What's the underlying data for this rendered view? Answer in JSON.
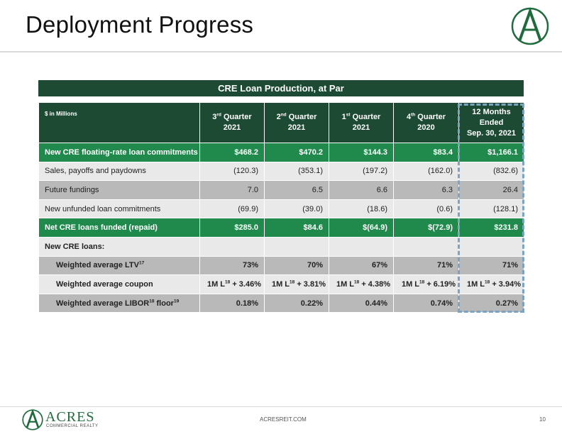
{
  "title": "Deployment Progress",
  "table": {
    "caption": "CRE Loan Production, at Par",
    "units": "$ in Millions",
    "columns": [
      {
        "main": "3",
        "sup": "rd",
        "rest": " Quarter",
        "line2": "2021"
      },
      {
        "main": "2",
        "sup": "nd",
        "rest": " Quarter",
        "line2": "2021"
      },
      {
        "main": "1",
        "sup": "st",
        "rest": " Quarter",
        "line2": "2021"
      },
      {
        "main": "4",
        "sup": "th",
        "rest": " Quarter",
        "line2": "2020"
      }
    ],
    "ttm_header": {
      "line1": "12 Months",
      "line2": "Ended",
      "line3": "Sep. 30, 2021"
    },
    "rows": [
      {
        "label": "New CRE floating-rate loan commitments",
        "values": [
          "$468.2",
          "$470.2",
          "$144.3",
          "$83.4",
          "$1,166.1"
        ]
      },
      {
        "label": "Sales, payoffs and paydowns",
        "values": [
          "(120.3)",
          "(353.1)",
          "(197.2)",
          "(162.0)",
          "(832.6)"
        ]
      },
      {
        "label": "Future fundings",
        "values": [
          "7.0",
          "6.5",
          "6.6",
          "6.3",
          "26.4"
        ]
      },
      {
        "label": "New unfunded loan commitments",
        "values": [
          "(69.9)",
          "(39.0)",
          "(18.6)",
          "(0.6)",
          "(128.1)"
        ]
      },
      {
        "label": "Net CRE loans funded (repaid)",
        "values": [
          "$285.0",
          "$84.6",
          "$(64.9)",
          "$(72.9)",
          "$231.8"
        ]
      },
      {
        "label": "New CRE loans:"
      },
      {
        "label": "Weighted average LTV",
        "label_sup": "17",
        "values": [
          "73%",
          "70%",
          "67%",
          "71%",
          "71%"
        ]
      },
      {
        "label": "Weighted average coupon",
        "coupon_prefix": "1M L",
        "coupon_sup": "18",
        "coupon_spreads": [
          " + 3.46%",
          " + 3.81%",
          " + 4.38%",
          " + 6.19%",
          " + 3.94%"
        ]
      },
      {
        "label": "Weighted average LIBOR",
        "label_sup": "18",
        "label_mid": " floor",
        "label_sup2": "19",
        "values": [
          "0.18%",
          "0.22%",
          "0.44%",
          "0.74%",
          "0.27%"
        ]
      }
    ]
  },
  "footer": {
    "brand": "ACRES",
    "brand_sub": "COMMERCIAL REALTY",
    "url": "ACRESREIT.COM",
    "page": "10"
  },
  "colors": {
    "dark_green": "#1d4a33",
    "green": "#1f8a4c",
    "light_gray": "#e9e9e9",
    "gray": "#b9b9b9",
    "dashed_blue": "#7ca3c2"
  },
  "icons": {
    "logo": "acres-a-logo"
  }
}
